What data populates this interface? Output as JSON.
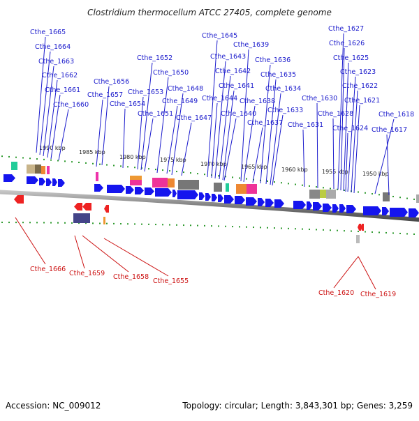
{
  "title": "Clostridium thermocellum ATCC 27405, complete genome",
  "footer": {
    "accession": "Accession: NC_009012",
    "summary": "Topology: circular; Length: 3,843,301 bp; Genes: 3,259"
  },
  "colors": {
    "forward_label": "#1a1acc",
    "reverse_label": "#cc1111",
    "forward_gene": "#1515ee",
    "reverse_gene": "#ee2222",
    "backbone": "#8a8a8a",
    "tick": "#2e9a2e"
  },
  "scale_labels": [
    "1990 kbp",
    "1985 kbp",
    "1980 kbp",
    "1975 kbp",
    "1970 kbp",
    "1965 kbp",
    "1960 kbp",
    "1955 kbp",
    "1950 kbp"
  ],
  "forward_genes": [
    "Cthe_1665",
    "Cthe_1664",
    "Cthe_1663",
    "Cthe_1662",
    "Cthe_1661",
    "Cthe_1660",
    "Cthe_1657",
    "Cthe_1656",
    "Cthe_1654",
    "Cthe_1653",
    "Cthe_1652",
    "Cthe_1651",
    "Cthe_1650",
    "Cthe_1649",
    "Cthe_1648",
    "Cthe_1647",
    "Cthe_1645",
    "Cthe_1644",
    "Cthe_1643",
    "Cthe_1642",
    "Cthe_1641",
    "Cthe_1640",
    "Cthe_1639",
    "Cthe_1638",
    "Cthe_1637",
    "Cthe_1636",
    "Cthe_1635",
    "Cthe_1634",
    "Cthe_1633",
    "Cthe_1631",
    "Cthe_1630",
    "Cthe_1628",
    "Cthe_1627",
    "Cthe_1626",
    "Cthe_1625",
    "Cthe_1624",
    "Cthe_1623",
    "Cthe_1622",
    "Cthe_1621",
    "Cthe_1618",
    "Cthe_1617"
  ],
  "reverse_genes": [
    "Cthe_1666",
    "Cthe_1659",
    "Cthe_1658",
    "Cthe_1655",
    "Cthe_1620",
    "Cthe_1619"
  ]
}
